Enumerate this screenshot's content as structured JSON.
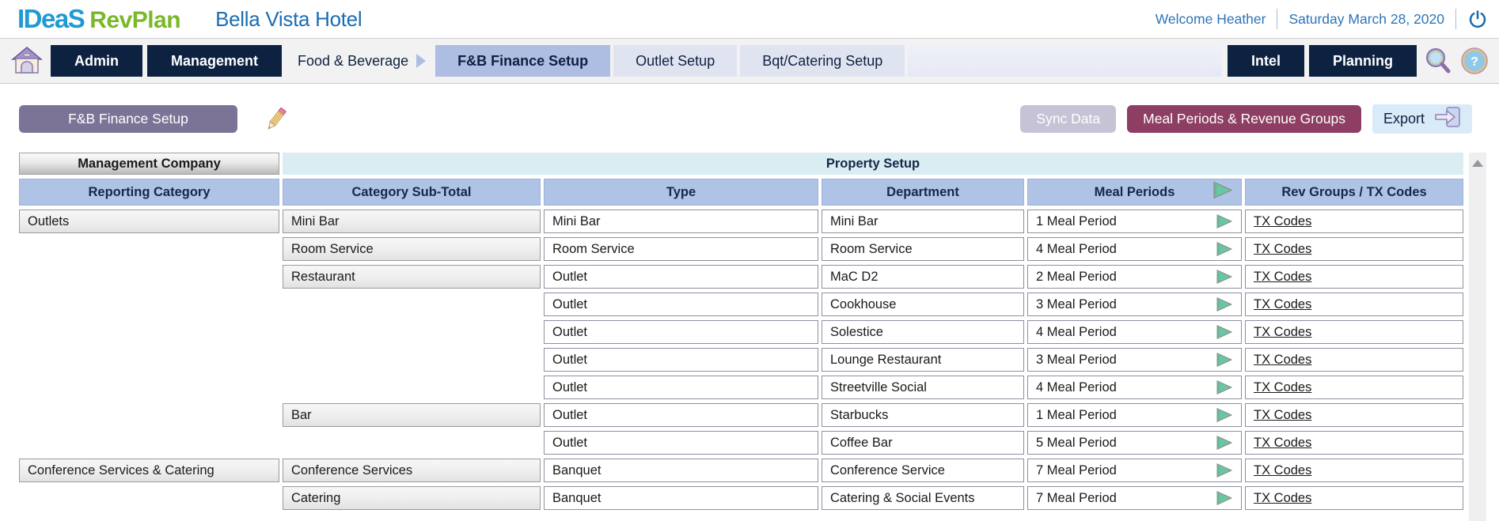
{
  "header": {
    "logo_primary": "IDeaS",
    "logo_secondary": "RevPlan",
    "property_name": "Bella Vista Hotel",
    "welcome": "Welcome Heather",
    "date": "Saturday March 28, 2020"
  },
  "navbar": {
    "admin": "Admin",
    "management": "Management",
    "breadcrumb": "Food & Beverage",
    "tabs": [
      {
        "label": "F&B Finance Setup",
        "active": true
      },
      {
        "label": "Outlet Setup",
        "active": false
      },
      {
        "label": "Bqt/Catering Setup",
        "active": false
      }
    ],
    "intel": "Intel",
    "planning": "Planning"
  },
  "toolbar": {
    "page_button": "F&B Finance Setup",
    "sync_button": "Sync Data",
    "meal_periods_button": "Meal Periods & Revenue Groups",
    "export_button": "Export"
  },
  "table": {
    "group_headers": {
      "management_company": "Management Company",
      "property_setup": "Property Setup"
    },
    "columns": [
      "Reporting Category",
      "Category Sub-Total",
      "Type",
      "Department",
      "Meal Periods",
      "Rev Groups / TX Codes"
    ],
    "tx_link_label": "TX Codes",
    "rows": [
      {
        "reporting_category": "Outlets",
        "sub_total": "Mini Bar",
        "type": "Mini Bar",
        "department": "Mini Bar",
        "meal_periods": "1 Meal Period"
      },
      {
        "reporting_category": "",
        "sub_total": "Room Service",
        "type": "Room Service",
        "department": "Room Service",
        "meal_periods": "4 Meal Period"
      },
      {
        "reporting_category": "",
        "sub_total": "Restaurant",
        "type": "Outlet",
        "department": "MaC D2",
        "meal_periods": "2 Meal Period"
      },
      {
        "reporting_category": "",
        "sub_total": "",
        "type": "Outlet",
        "department": "Cookhouse",
        "meal_periods": "3 Meal Period"
      },
      {
        "reporting_category": "",
        "sub_total": "",
        "type": "Outlet",
        "department": "Solestice",
        "meal_periods": "4 Meal Period"
      },
      {
        "reporting_category": "",
        "sub_total": "",
        "type": "Outlet",
        "department": "Lounge Restaurant",
        "meal_periods": "3 Meal Period"
      },
      {
        "reporting_category": "",
        "sub_total": "",
        "type": "Outlet",
        "department": "Streetville Social",
        "meal_periods": "4 Meal Period"
      },
      {
        "reporting_category": "",
        "sub_total": "Bar",
        "type": "Outlet",
        "department": "Starbucks",
        "meal_periods": "1 Meal Period"
      },
      {
        "reporting_category": "",
        "sub_total": "",
        "type": "Outlet",
        "department": "Coffee Bar",
        "meal_periods": "5 Meal Period"
      },
      {
        "reporting_category": "Conference Services & Catering",
        "sub_total": "Conference Services",
        "type": "Banquet",
        "department": "Conference Service",
        "meal_periods": "7 Meal Period"
      },
      {
        "reporting_category": "",
        "sub_total": "Catering",
        "type": "Banquet",
        "department": "Catering & Social Events",
        "meal_periods": "7 Meal Period"
      }
    ]
  },
  "colors": {
    "logo_blue": "#2199d2",
    "logo_green": "#7ab829",
    "title_blue": "#1b6db3",
    "navy": "#0d2240",
    "tab_active": "#aebde2",
    "tab_inactive": "#e0e4f1",
    "page_button_purple": "#7b7496",
    "sync_gray": "#c6c3d7",
    "plum": "#8d3e62",
    "export_blue": "#d9eaf8",
    "header_cyan": "#d9edf2",
    "header_periwinkle": "#aec3e6",
    "arrow_green": "#6cc5a1"
  }
}
